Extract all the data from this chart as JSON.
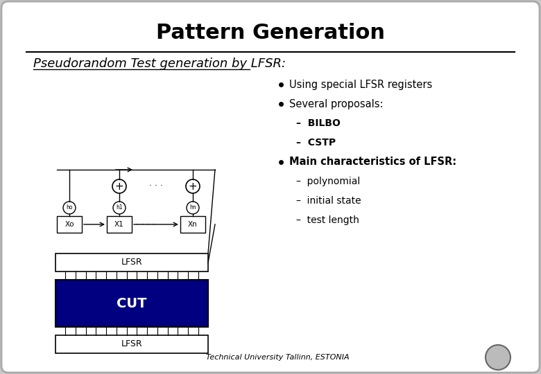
{
  "title": "Pattern Generation",
  "subtitle": "Pseudorandom Test generation by LFSR:",
  "background_color": "#c8c8c8",
  "bullet_points": [
    {
      "text": "Using special LFSR registers",
      "level": 1,
      "bold": false
    },
    {
      "text": "Several proposals:",
      "level": 1,
      "bold": false
    },
    {
      "text": "BILBO",
      "level": 2,
      "bold": true
    },
    {
      "text": "CSTP",
      "level": 2,
      "bold": true
    },
    {
      "text": "Main characteristics of LFSR:",
      "level": 1,
      "bold": true
    },
    {
      "text": "polynomial",
      "level": 2,
      "bold": false
    },
    {
      "text": "initial state",
      "level": 2,
      "bold": false
    },
    {
      "text": "test length",
      "level": 2,
      "bold": false
    }
  ],
  "footer_text": "Technical University Tallinn, ESTONIA",
  "cut_color": "#000080",
  "cut_text_color": "#ffffff"
}
